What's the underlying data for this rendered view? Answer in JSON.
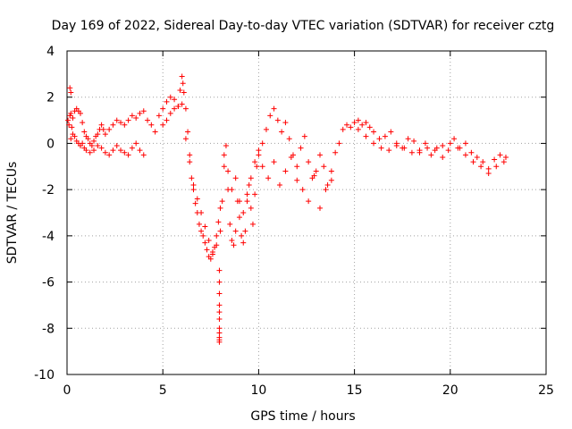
{
  "chart_data": {
    "type": "scatter",
    "title": "Day 169 of 2022, Sidereal Day-to-day VTEC variation (SDTVAR) for receiver cztg",
    "xlabel": "GPS time / hours",
    "ylabel": "SDTVAR / TECUs",
    "xlim": [
      0,
      25
    ],
    "ylim": [
      -10,
      4
    ],
    "xticks": [
      0,
      5,
      10,
      15,
      20,
      25
    ],
    "yticks": [
      -10,
      -8,
      -6,
      -4,
      -2,
      0,
      2,
      4
    ],
    "grid": true,
    "marker": "+",
    "color": "#ff0000",
    "series": [
      {
        "name": "SDTVAR",
        "x": [
          0.05,
          0.1,
          0.15,
          0.2,
          0.25,
          0.3,
          0.4,
          0.5,
          0.6,
          0.7,
          0.8,
          0.9,
          1.0,
          1.1,
          1.2,
          1.3,
          1.4,
          1.5,
          1.6,
          1.7,
          1.8,
          1.9,
          2.0,
          2.2,
          2.4,
          2.6,
          2.8,
          3.0,
          3.2,
          3.4,
          3.6,
          3.8,
          4.0,
          0.2,
          0.3,
          0.4,
          0.5,
          0.6,
          0.7,
          0.8,
          0.9,
          1.0,
          1.2,
          1.4,
          1.6,
          1.8,
          2.0,
          2.2,
          2.4,
          2.6,
          2.8,
          3.0,
          3.2,
          3.4,
          3.6,
          3.8,
          4.0,
          0.15,
          0.2,
          4.2,
          4.4,
          4.6,
          4.8,
          5.0,
          5.2,
          5.4,
          5.6,
          5.8,
          5.9,
          6.0,
          6.05,
          6.1,
          6.2,
          6.3,
          6.4,
          6.5,
          6.6,
          6.7,
          6.8,
          6.9,
          7.0,
          7.1,
          7.2,
          7.3,
          7.4,
          7.5,
          7.6,
          7.7,
          7.8,
          7.9,
          8.0,
          5.0,
          5.2,
          5.4,
          5.6,
          5.8,
          6.0,
          6.2,
          6.4,
          6.6,
          6.8,
          7.0,
          7.2,
          7.4,
          7.6,
          7.8,
          8.0,
          7.95,
          7.95,
          7.95,
          7.95,
          7.95,
          7.95,
          7.95,
          7.95,
          7.95,
          7.95,
          7.95,
          8.1,
          8.2,
          8.3,
          8.4,
          8.5,
          8.6,
          8.7,
          8.8,
          8.9,
          9.0,
          9.1,
          9.2,
          9.3,
          9.4,
          9.5,
          9.6,
          9.7,
          9.8,
          9.9,
          10.0,
          8.2,
          8.4,
          8.6,
          8.8,
          9.0,
          9.2,
          9.4,
          9.6,
          9.8,
          10.0,
          10.2,
          10.4,
          10.6,
          10.8,
          11.0,
          11.2,
          11.4,
          11.6,
          11.8,
          12.0,
          12.2,
          12.4,
          12.6,
          12.8,
          13.0,
          13.2,
          13.4,
          13.6,
          13.8,
          14.0,
          14.2,
          14.4,
          14.6,
          14.8,
          15.0,
          10.2,
          10.5,
          10.8,
          11.1,
          11.4,
          11.7,
          12.0,
          12.3,
          12.6,
          12.9,
          13.2,
          13.5,
          13.8,
          15.2,
          15.4,
          15.6,
          15.8,
          16.0,
          16.3,
          16.6,
          16.9,
          17.2,
          17.5,
          17.8,
          18.1,
          18.4,
          18.7,
          19.0,
          19.3,
          19.6,
          19.9,
          20.2,
          20.5,
          20.8,
          21.1,
          21.4,
          21.7,
          22.0,
          22.3,
          22.6,
          22.9,
          15.2,
          15.6,
          16.0,
          16.4,
          16.8,
          17.2,
          17.6,
          18.0,
          18.4,
          18.8,
          19.2,
          19.6,
          20.0,
          20.4,
          20.8,
          21.2,
          21.6,
          22.0,
          22.4,
          22.8
        ],
        "y": [
          1.0,
          0.8,
          1.2,
          1.3,
          0.7,
          1.1,
          1.4,
          1.5,
          1.4,
          1.3,
          0.9,
          0.5,
          0.3,
          0.2,
          0.0,
          -0.1,
          0.1,
          0.3,
          0.4,
          0.6,
          0.8,
          0.6,
          0.4,
          0.6,
          0.8,
          1.0,
          0.9,
          0.8,
          1.0,
          1.2,
          1.1,
          1.3,
          1.4,
          0.2,
          0.4,
          0.3,
          0.1,
          0.0,
          -0.1,
          0.0,
          -0.2,
          -0.3,
          -0.4,
          -0.3,
          -0.1,
          -0.2,
          -0.4,
          -0.5,
          -0.3,
          -0.1,
          -0.3,
          -0.4,
          -0.5,
          -0.2,
          0.0,
          -0.3,
          -0.5,
          2.4,
          2.2,
          1.0,
          0.8,
          0.5,
          1.2,
          1.5,
          1.8,
          2.0,
          1.9,
          1.6,
          2.3,
          2.9,
          2.6,
          2.2,
          1.5,
          0.5,
          -0.5,
          -1.5,
          -2.0,
          -2.6,
          -3.0,
          -3.5,
          -3.8,
          -4.0,
          -4.3,
          -4.6,
          -4.9,
          -5.0,
          -4.8,
          -4.5,
          -4.0,
          -3.4,
          -2.8,
          0.8,
          1.0,
          1.3,
          1.5,
          1.6,
          1.7,
          0.2,
          -0.8,
          -1.8,
          -2.4,
          -3.0,
          -3.6,
          -4.2,
          -4.7,
          -4.4,
          -3.8,
          -5.5,
          -6.0,
          -6.5,
          -7.0,
          -7.3,
          -7.6,
          -8.0,
          -8.2,
          -8.4,
          -8.6,
          -8.5,
          -2.5,
          -1.0,
          -0.1,
          -2.0,
          -3.5,
          -4.2,
          -4.4,
          -3.8,
          -2.5,
          -3.2,
          -4.0,
          -4.3,
          -3.8,
          -2.5,
          -1.8,
          -2.8,
          -3.5,
          -2.2,
          -1.0,
          -0.5,
          -0.5,
          -1.2,
          -2.0,
          -1.5,
          -2.5,
          -3.0,
          -2.2,
          -1.5,
          -0.8,
          -0.3,
          0.0,
          0.6,
          1.2,
          1.5,
          1.0,
          0.5,
          0.9,
          0.2,
          -0.5,
          -1.0,
          -0.2,
          0.3,
          -0.8,
          -1.5,
          -1.2,
          -0.5,
          -1.0,
          -1.8,
          -1.2,
          -0.4,
          0.0,
          0.6,
          0.8,
          0.7,
          0.9,
          -1.0,
          -1.5,
          -0.8,
          -1.8,
          -1.2,
          -0.6,
          -1.6,
          -2.0,
          -2.5,
          -1.4,
          -2.8,
          -2.0,
          -1.6,
          1.0,
          0.8,
          0.9,
          0.7,
          0.5,
          0.2,
          0.3,
          0.5,
          0.0,
          -0.2,
          0.2,
          0.1,
          -0.3,
          0.0,
          -0.5,
          -0.2,
          -0.6,
          -0.3,
          0.2,
          -0.2,
          0.0,
          -0.4,
          -0.6,
          -0.8,
          -1.1,
          -0.7,
          -0.5,
          -0.6,
          0.6,
          0.3,
          0.0,
          -0.2,
          -0.3,
          -0.1,
          -0.2,
          -0.4,
          -0.4,
          -0.2,
          -0.3,
          -0.1,
          0.0,
          -0.2,
          -0.5,
          -0.8,
          -1.0,
          -1.3,
          -1.0,
          -0.8
        ]
      }
    ]
  }
}
